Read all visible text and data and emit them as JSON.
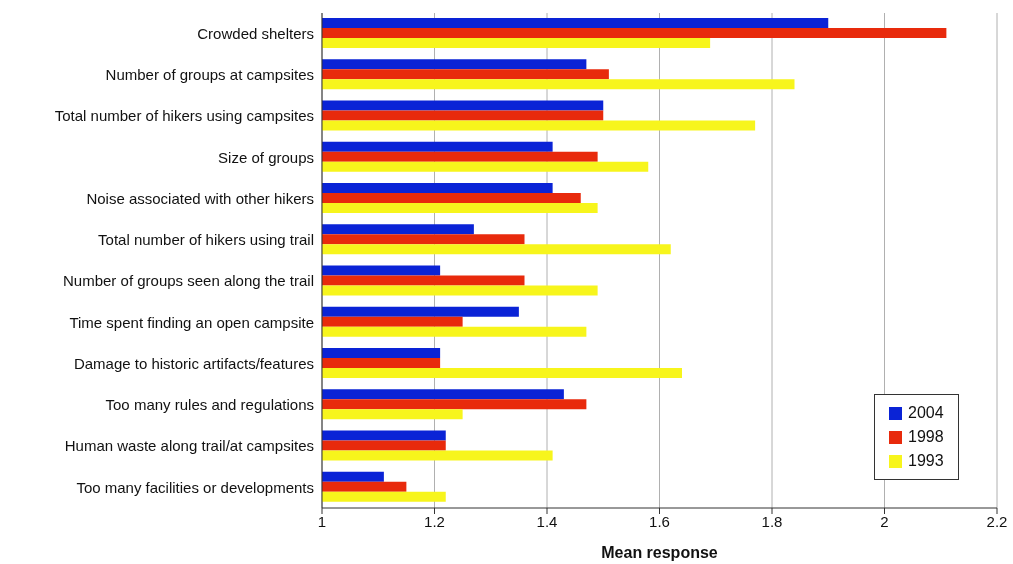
{
  "chart_data": {
    "type": "bar",
    "orientation": "horizontal",
    "xlabel": "Mean response",
    "categories": [
      "Crowded shelters",
      "Number of groups at campsites",
      "Total number of hikers using campsites",
      "Size of groups",
      "Noise associated with other hikers",
      "Total number of hikers using trail",
      "Number of groups seen along the trail",
      "Time spent finding an open campsite",
      "Damage to historic artifacts/features",
      "Too many rules and regulations",
      "Human waste along trail/at campsites",
      "Too many facilities or developments"
    ],
    "series": [
      {
        "name": "2004",
        "color": "#0a23d6",
        "values": [
          1.9,
          1.47,
          1.5,
          1.41,
          1.41,
          1.27,
          1.21,
          1.35,
          1.21,
          1.43,
          1.22,
          1.11
        ]
      },
      {
        "name": "1998",
        "color": "#e82a0c",
        "values": [
          2.11,
          1.51,
          1.5,
          1.49,
          1.46,
          1.36,
          1.36,
          1.25,
          1.21,
          1.47,
          1.22,
          1.15
        ]
      },
      {
        "name": "1993",
        "color": "#f7f51c",
        "values": [
          1.69,
          1.84,
          1.77,
          1.58,
          1.49,
          1.62,
          1.49,
          1.47,
          1.64,
          1.25,
          1.41,
          1.22
        ]
      }
    ],
    "xlim": [
      1,
      2.2
    ],
    "xticks": [
      1,
      1.2,
      1.4,
      1.6,
      1.8,
      2,
      2.2
    ],
    "grid": "x",
    "legend": "bottom right"
  }
}
